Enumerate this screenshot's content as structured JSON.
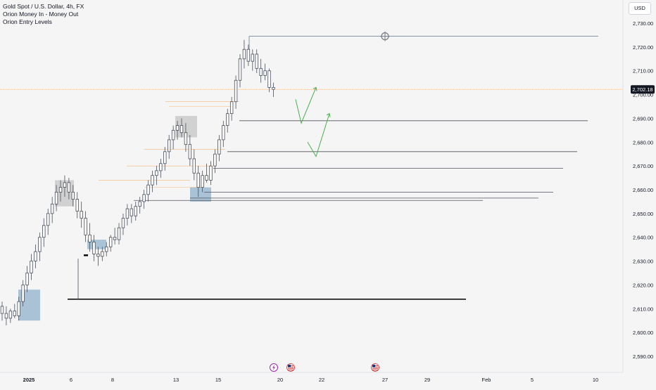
{
  "header": {
    "symbol_title": "Gold Spot / U.S. Dollar, 4h, FX",
    "indicators": [
      "Orion Money In - Money Out",
      "Orion Entry Levels"
    ],
    "currency": "USD"
  },
  "price_axis": {
    "ticks": [
      "2,590.00",
      "2,600.00",
      "2,610.00",
      "2,620.00",
      "2,630.00",
      "2,640.00",
      "2,650.00",
      "2,660.00",
      "2,670.00",
      "2,680.00",
      "2,690.00",
      "2,700.00",
      "2,710.00",
      "2,720.00",
      "2,730.00"
    ],
    "current_price_label": "2,702.18"
  },
  "time_axis": {
    "labels": [
      "2025",
      "6",
      "8",
      "13",
      "15",
      "20",
      "22",
      "27",
      "29",
      "Feb",
      "5",
      "10"
    ]
  },
  "colors": {
    "up_candle": "#ffffff",
    "down_candle": "#ffffff",
    "candle_outline": "#4a4f5c",
    "level_line": "#50535e",
    "resistance_line": "#5b7a87",
    "orange_line": "#f5a65b",
    "support_bold": "#000000",
    "demand_zone": "#8fb0c9",
    "supply_zone": "#b3b3b3",
    "projection_arrow": "#4caf50",
    "price_tag": "#131722"
  },
  "chart_data": {
    "type": "candlestick",
    "title": "Gold Spot / U.S. Dollar, 4h, FX",
    "timeframe": "4h",
    "y_range": [
      2586,
      2734
    ],
    "current_price": 2702.18,
    "candles": [
      {
        "o": 2611,
        "h": 2613,
        "l": 2605,
        "c": 2608
      },
      {
        "o": 2608,
        "h": 2611,
        "l": 2603,
        "c": 2606
      },
      {
        "o": 2606,
        "h": 2610,
        "l": 2604,
        "c": 2609
      },
      {
        "o": 2609,
        "h": 2612,
        "l": 2606,
        "c": 2607
      },
      {
        "o": 2607,
        "h": 2615,
        "l": 2605,
        "c": 2613
      },
      {
        "o": 2613,
        "h": 2622,
        "l": 2611,
        "c": 2620
      },
      {
        "o": 2620,
        "h": 2628,
        "l": 2617,
        "c": 2625
      },
      {
        "o": 2625,
        "h": 2633,
        "l": 2622,
        "c": 2630
      },
      {
        "o": 2630,
        "h": 2637,
        "l": 2627,
        "c": 2634
      },
      {
        "o": 2634,
        "h": 2642,
        "l": 2630,
        "c": 2640
      },
      {
        "o": 2640,
        "h": 2648,
        "l": 2636,
        "c": 2645
      },
      {
        "o": 2645,
        "h": 2652,
        "l": 2641,
        "c": 2650
      },
      {
        "o": 2650,
        "h": 2657,
        "l": 2646,
        "c": 2654
      },
      {
        "o": 2654,
        "h": 2662,
        "l": 2651,
        "c": 2659
      },
      {
        "o": 2659,
        "h": 2664,
        "l": 2655,
        "c": 2661
      },
      {
        "o": 2661,
        "h": 2666,
        "l": 2657,
        "c": 2663
      },
      {
        "o": 2663,
        "h": 2665,
        "l": 2656,
        "c": 2659
      },
      {
        "o": 2659,
        "h": 2662,
        "l": 2653,
        "c": 2656
      },
      {
        "o": 2656,
        "h": 2659,
        "l": 2648,
        "c": 2651
      },
      {
        "o": 2651,
        "h": 2655,
        "l": 2644,
        "c": 2648
      },
      {
        "o": 2648,
        "h": 2651,
        "l": 2638,
        "c": 2641
      },
      {
        "o": 2641,
        "h": 2646,
        "l": 2634,
        "c": 2638
      },
      {
        "o": 2638,
        "h": 2641,
        "l": 2630,
        "c": 2633
      },
      {
        "o": 2633,
        "h": 2636,
        "l": 2628,
        "c": 2632
      },
      {
        "o": 2632,
        "h": 2636,
        "l": 2630,
        "c": 2634
      },
      {
        "o": 2634,
        "h": 2638,
        "l": 2632,
        "c": 2636
      },
      {
        "o": 2636,
        "h": 2641,
        "l": 2634,
        "c": 2640
      },
      {
        "o": 2640,
        "h": 2644,
        "l": 2637,
        "c": 2639
      },
      {
        "o": 2639,
        "h": 2646,
        "l": 2637,
        "c": 2644
      },
      {
        "o": 2644,
        "h": 2650,
        "l": 2641,
        "c": 2648
      },
      {
        "o": 2648,
        "h": 2654,
        "l": 2645,
        "c": 2652
      },
      {
        "o": 2652,
        "h": 2654,
        "l": 2646,
        "c": 2649
      },
      {
        "o": 2649,
        "h": 2655,
        "l": 2647,
        "c": 2653
      },
      {
        "o": 2653,
        "h": 2657,
        "l": 2650,
        "c": 2655
      },
      {
        "o": 2655,
        "h": 2660,
        "l": 2652,
        "c": 2658
      },
      {
        "o": 2658,
        "h": 2664,
        "l": 2655,
        "c": 2662
      },
      {
        "o": 2662,
        "h": 2668,
        "l": 2659,
        "c": 2666
      },
      {
        "o": 2666,
        "h": 2670,
        "l": 2662,
        "c": 2668
      },
      {
        "o": 2668,
        "h": 2673,
        "l": 2665,
        "c": 2671
      },
      {
        "o": 2671,
        "h": 2678,
        "l": 2668,
        "c": 2676
      },
      {
        "o": 2676,
        "h": 2683,
        "l": 2673,
        "c": 2681
      },
      {
        "o": 2681,
        "h": 2687,
        "l": 2677,
        "c": 2685
      },
      {
        "o": 2685,
        "h": 2689,
        "l": 2681,
        "c": 2687
      },
      {
        "o": 2687,
        "h": 2690,
        "l": 2682,
        "c": 2684
      },
      {
        "o": 2684,
        "h": 2688,
        "l": 2676,
        "c": 2679
      },
      {
        "o": 2679,
        "h": 2683,
        "l": 2670,
        "c": 2673
      },
      {
        "o": 2673,
        "h": 2677,
        "l": 2664,
        "c": 2667
      },
      {
        "o": 2667,
        "h": 2670,
        "l": 2657,
        "c": 2661
      },
      {
        "o": 2661,
        "h": 2668,
        "l": 2659,
        "c": 2666
      },
      {
        "o": 2666,
        "h": 2671,
        "l": 2663,
        "c": 2664
      },
      {
        "o": 2664,
        "h": 2672,
        "l": 2662,
        "c": 2670
      },
      {
        "o": 2670,
        "h": 2677,
        "l": 2667,
        "c": 2675
      },
      {
        "o": 2675,
        "h": 2683,
        "l": 2672,
        "c": 2681
      },
      {
        "o": 2681,
        "h": 2689,
        "l": 2678,
        "c": 2687
      },
      {
        "o": 2687,
        "h": 2694,
        "l": 2684,
        "c": 2692
      },
      {
        "o": 2692,
        "h": 2699,
        "l": 2689,
        "c": 2697
      },
      {
        "o": 2697,
        "h": 2708,
        "l": 2694,
        "c": 2706
      },
      {
        "o": 2706,
        "h": 2717,
        "l": 2703,
        "c": 2715
      },
      {
        "o": 2715,
        "h": 2723,
        "l": 2711,
        "c": 2719
      },
      {
        "o": 2719,
        "h": 2721,
        "l": 2712,
        "c": 2714
      },
      {
        "o": 2714,
        "h": 2719,
        "l": 2710,
        "c": 2717
      },
      {
        "o": 2717,
        "h": 2719,
        "l": 2709,
        "c": 2711
      },
      {
        "o": 2711,
        "h": 2715,
        "l": 2705,
        "c": 2708
      },
      {
        "o": 2708,
        "h": 2713,
        "l": 2706,
        "c": 2710
      },
      {
        "o": 2710,
        "h": 2711,
        "l": 2701,
        "c": 2703
      },
      {
        "o": 2703,
        "h": 2705,
        "l": 2699,
        "c": 2702.18
      }
    ],
    "levels": [
      {
        "price": 2724.5,
        "kind": "resistance"
      },
      {
        "price": 2689,
        "kind": "level"
      },
      {
        "price": 2676,
        "kind": "level"
      },
      {
        "price": 2669,
        "kind": "level"
      },
      {
        "price": 2659,
        "kind": "level"
      },
      {
        "price": 2656.5,
        "kind": "level"
      },
      {
        "price": 2655.5,
        "kind": "level"
      },
      {
        "price": 2614,
        "kind": "support"
      }
    ],
    "zones": [
      {
        "kind": "demand",
        "top": 2618,
        "bottom": 2605
      },
      {
        "kind": "supply",
        "top": 2664,
        "bottom": 2653
      },
      {
        "kind": "demand",
        "top": 2639,
        "bottom": 2635
      },
      {
        "kind": "supply",
        "top": 2691,
        "bottom": 2682
      },
      {
        "kind": "demand",
        "top": 2661,
        "bottom": 2655
      }
    ],
    "projections": [
      {
        "points": [
          [
            2698,
            2688
          ],
          [
            2688,
            2703
          ]
        ]
      },
      {
        "points": [
          [
            2680,
            2674
          ],
          [
            2674,
            2692
          ]
        ]
      }
    ],
    "events": [
      {
        "icon": "lightning-icon",
        "date_label": "20"
      },
      {
        "icon": "us-flag-icon",
        "date_label": "20"
      },
      {
        "icon": "us-flag-icon",
        "date_label": "27"
      }
    ]
  }
}
